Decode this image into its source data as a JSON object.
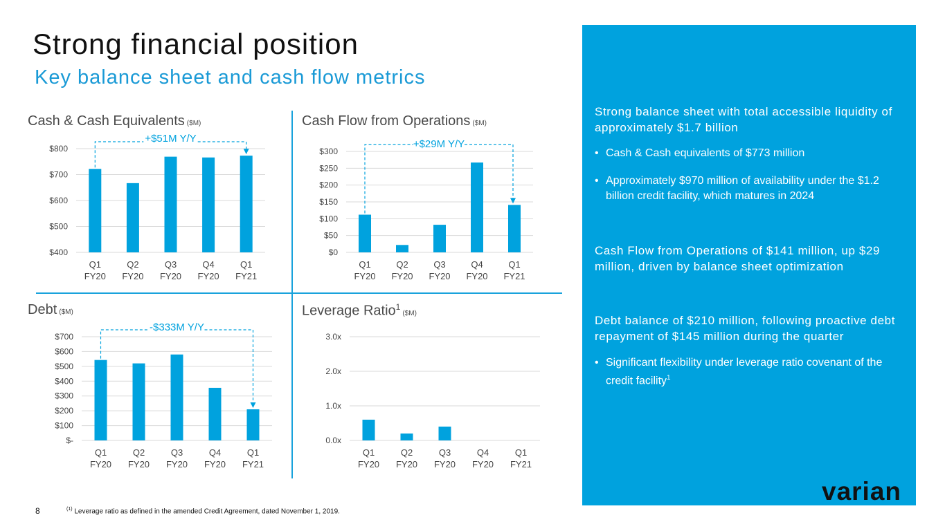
{
  "header": {
    "title": "Strong financial position",
    "subtitle": "Key balance sheet and cash flow metrics"
  },
  "colors": {
    "accent": "#00a2de",
    "bar": "#00a2de",
    "grid": "#d9d9d9"
  },
  "charts": {
    "cash": {
      "title": "Cash & Cash Equivalents",
      "unit": "($M)",
      "annotation": "+$51M Y/Y"
    },
    "cfo": {
      "title": "Cash Flow from Operations",
      "unit": "($M)",
      "annotation": "+$29M Y/Y"
    },
    "debt": {
      "title": "Debt",
      "unit": "($M)",
      "annotation": "-$333M Y/Y"
    },
    "leverage": {
      "title": "Leverage Ratio",
      "sup": "1",
      "unit": "($M)"
    }
  },
  "chart_data": [
    {
      "id": "cash",
      "type": "bar",
      "title": "Cash & Cash Equivalents ($M)",
      "categories": [
        [
          "Q1",
          "FY20"
        ],
        [
          "Q2",
          "FY20"
        ],
        [
          "Q3",
          "FY20"
        ],
        [
          "Q4",
          "FY20"
        ],
        [
          "Q1",
          "FY21"
        ]
      ],
      "values": [
        722,
        667,
        769,
        766,
        773
      ],
      "ylim": [
        400,
        800
      ],
      "yticks": [
        400,
        500,
        600,
        700,
        800
      ],
      "ytick_labels": [
        "$400",
        "$500",
        "$600",
        "$700",
        "$800"
      ],
      "annotation": "+$51M Y/Y",
      "bracket": [
        0,
        4
      ]
    },
    {
      "id": "cfo",
      "type": "bar",
      "title": "Cash Flow from Operations ($M)",
      "categories": [
        [
          "Q1",
          "FY20"
        ],
        [
          "Q2",
          "FY20"
        ],
        [
          "Q3",
          "FY20"
        ],
        [
          "Q4",
          "FY20"
        ],
        [
          "Q1",
          "FY21"
        ]
      ],
      "values": [
        112,
        22,
        82,
        267,
        141
      ],
      "ylim": [
        0,
        300
      ],
      "yticks": [
        0,
        50,
        100,
        150,
        200,
        250,
        300
      ],
      "ytick_labels": [
        "$0",
        "$50",
        "$100",
        "$150",
        "$200",
        "$250",
        "$300"
      ],
      "annotation": "+$29M Y/Y",
      "bracket": [
        0,
        4
      ]
    },
    {
      "id": "debt",
      "type": "bar",
      "title": "Debt ($M)",
      "categories": [
        [
          "Q1",
          "FY20"
        ],
        [
          "Q2",
          "FY20"
        ],
        [
          "Q3",
          "FY20"
        ],
        [
          "Q4",
          "FY20"
        ],
        [
          "Q1",
          "FY21"
        ]
      ],
      "values": [
        543,
        520,
        580,
        355,
        210
      ],
      "ylim": [
        0,
        700
      ],
      "yticks": [
        0,
        100,
        200,
        300,
        400,
        500,
        600,
        700
      ],
      "ytick_labels": [
        "$-",
        "$100",
        "$200",
        "$300",
        "$400",
        "$500",
        "$600",
        "$700"
      ],
      "annotation": "-$333M Y/Y",
      "bracket": [
        0,
        4
      ]
    },
    {
      "id": "leverage",
      "type": "bar",
      "title": "Leverage Ratio1 ($M)",
      "categories": [
        [
          "Q1",
          "FY20"
        ],
        [
          "Q2",
          "FY20"
        ],
        [
          "Q3",
          "FY20"
        ],
        [
          "Q4",
          "FY20"
        ],
        [
          "Q1",
          "FY21"
        ]
      ],
      "values": [
        0.6,
        0.2,
        0.4,
        0,
        0
      ],
      "ylim": [
        0,
        3
      ],
      "yticks": [
        0,
        1,
        2,
        3
      ],
      "ytick_labels": [
        "0.0x",
        "1.0x",
        "2.0x",
        "3.0x"
      ]
    }
  ],
  "panel": {
    "heading1": "Strong balance sheet with total accessible liquidity of approximately $1.7 billion",
    "bullet1": "Cash & Cash equivalents of $773 million",
    "bullet2": "Approximately $970 million of availability under the $1.2 billion credit facility, which matures in 2024",
    "heading2": "Cash Flow from Operations of $141 million, up $29 million, driven by balance sheet optimization",
    "heading3": "Debt balance of $210 million, following proactive debt repayment of $145 million during the quarter",
    "bullet3": "Significant flexibility under leverage ratio covenant of the credit facility",
    "bullet3_sup": "1",
    "bullet_char": "•",
    "logo": "varian"
  },
  "footer": {
    "page": "8",
    "footnote_mark": "(1)",
    "footnote": "Leverage ratio as defined in the amended Credit Agreement, dated November 1, 2019."
  }
}
